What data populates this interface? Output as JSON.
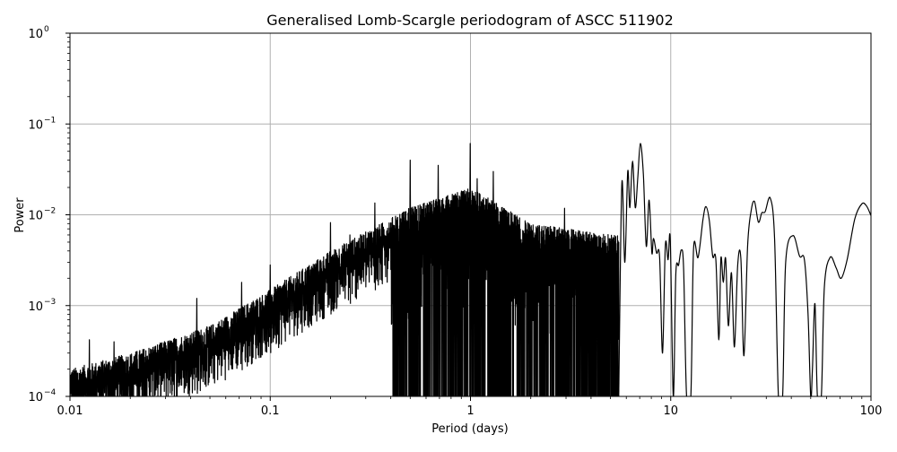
{
  "chart_data": {
    "type": "line",
    "title": "Generalised Lomb-Scargle periodogram of ASCC 511902",
    "xlabel": "Period (days)",
    "ylabel": "Power",
    "xscale": "log",
    "yscale": "log",
    "xlim": [
      0.01,
      100
    ],
    "ylim": [
      0.0001,
      1
    ],
    "grid": true,
    "legend": null,
    "x_ticks": [
      {
        "value": 0.01,
        "label": "0.01"
      },
      {
        "value": 0.1,
        "label": "0.1"
      },
      {
        "value": 1,
        "label": "1"
      },
      {
        "value": 10,
        "label": "10"
      },
      {
        "value": 100,
        "label": "100"
      }
    ],
    "y_ticks": [
      {
        "value": 1,
        "base": "10",
        "exp": "0"
      },
      {
        "value": 0.1,
        "base": "10",
        "exp": "−1"
      },
      {
        "value": 0.01,
        "base": "10",
        "exp": "−2"
      },
      {
        "value": 0.001,
        "base": "10",
        "exp": "−3"
      },
      {
        "value": 0.0001,
        "base": "10",
        "exp": "−4"
      }
    ],
    "envelope": {
      "description": "Dense forest of peaks; upper envelope rises with period",
      "points": [
        {
          "period": 0.01,
          "power": 0.0002
        },
        {
          "period": 0.02,
          "power": 0.0003
        },
        {
          "period": 0.05,
          "power": 0.0006
        },
        {
          "period": 0.1,
          "power": 0.0015
        },
        {
          "period": 0.2,
          "power": 0.004
        },
        {
          "period": 0.5,
          "power": 0.012
        },
        {
          "period": 1.0,
          "power": 0.02
        },
        {
          "period": 2.0,
          "power": 0.008
        },
        {
          "period": 5.0,
          "power": 0.006
        }
      ]
    },
    "peaks": [
      {
        "period": 0.0125,
        "power": 0.00042
      },
      {
        "period": 0.0166,
        "power": 0.0004
      },
      {
        "period": 0.043,
        "power": 0.0012
      },
      {
        "period": 0.072,
        "power": 0.0018
      },
      {
        "period": 0.1,
        "power": 0.0028
      },
      {
        "period": 0.2,
        "power": 0.0082
      },
      {
        "period": 0.25,
        "power": 0.006
      },
      {
        "period": 0.333,
        "power": 0.0135
      },
      {
        "period": 0.5,
        "power": 0.04
      },
      {
        "period": 0.69,
        "power": 0.035
      },
      {
        "period": 0.997,
        "power": 0.061
      },
      {
        "period": 1.08,
        "power": 0.025
      },
      {
        "period": 1.3,
        "power": 0.03
      },
      {
        "period": 2.95,
        "power": 0.0118
      },
      {
        "period": 5.7,
        "power": 0.022
      },
      {
        "period": 6.4,
        "power": 0.038
      },
      {
        "period": 7.05,
        "power": 0.06
      },
      {
        "period": 7.8,
        "power": 0.0145
      },
      {
        "period": 9.5,
        "power": 0.0045
      },
      {
        "period": 11.3,
        "power": 0.004
      },
      {
        "period": 15.0,
        "power": 0.0123
      },
      {
        "period": 17.6,
        "power": 0.0033
      },
      {
        "period": 20.0,
        "power": 0.0023
      },
      {
        "period": 22.5,
        "power": 0.0033
      },
      {
        "period": 26.2,
        "power": 0.014
      },
      {
        "period": 28.5,
        "power": 0.0105
      },
      {
        "period": 31.4,
        "power": 0.0153
      },
      {
        "period": 40.8,
        "power": 0.0059
      },
      {
        "period": 46.0,
        "power": 0.0033
      },
      {
        "period": 52.0,
        "power": 0.00105
      },
      {
        "period": 63.0,
        "power": 0.0034
      },
      {
        "period": 90.0,
        "power": 0.0132
      }
    ],
    "smooth_tail": [
      [
        5.5,
        0.0001
      ],
      [
        5.7,
        0.022
      ],
      [
        5.9,
        0.003
      ],
      [
        6.1,
        0.03
      ],
      [
        6.25,
        0.012
      ],
      [
        6.45,
        0.039
      ],
      [
        6.65,
        0.012
      ],
      [
        6.85,
        0.026
      ],
      [
        7.05,
        0.061
      ],
      [
        7.3,
        0.028
      ],
      [
        7.55,
        0.0045
      ],
      [
        7.8,
        0.0145
      ],
      [
        8.05,
        0.0038
      ],
      [
        8.2,
        0.0055
      ],
      [
        8.5,
        0.0038
      ],
      [
        8.8,
        0.0034
      ],
      [
        9.1,
        0.0003
      ],
      [
        9.4,
        0.0046
      ],
      [
        9.7,
        0.0032
      ],
      [
        9.95,
        0.0052
      ],
      [
        10.3,
        0.0001
      ],
      [
        10.6,
        0.0022
      ],
      [
        10.95,
        0.0028
      ],
      [
        11.3,
        0.0041
      ],
      [
        11.6,
        0.0025
      ],
      [
        12.0,
        0.0001
      ],
      [
        12.6,
        0.0001
      ],
      [
        13.0,
        0.0042
      ],
      [
        13.7,
        0.0034
      ],
      [
        14.5,
        0.009
      ],
      [
        15.0,
        0.0123
      ],
      [
        15.6,
        0.0085
      ],
      [
        16.2,
        0.0035
      ],
      [
        16.8,
        0.0032
      ],
      [
        17.4,
        0.00042
      ],
      [
        17.8,
        0.0033
      ],
      [
        18.3,
        0.0018
      ],
      [
        18.8,
        0.0033
      ],
      [
        19.4,
        0.0006
      ],
      [
        20.1,
        0.0023
      ],
      [
        20.8,
        0.00035
      ],
      [
        21.6,
        0.0028
      ],
      [
        22.4,
        0.0033
      ],
      [
        23.2,
        0.00028
      ],
      [
        24.2,
        0.0045
      ],
      [
        25.2,
        0.011
      ],
      [
        26.2,
        0.014
      ],
      [
        27.4,
        0.0083
      ],
      [
        28.5,
        0.0105
      ],
      [
        29.6,
        0.0108
      ],
      [
        31.4,
        0.0153
      ],
      [
        33.0,
        0.0055
      ],
      [
        34.5,
        0.0001
      ],
      [
        36.2,
        0.0001
      ],
      [
        37.5,
        0.003
      ],
      [
        40.8,
        0.0059
      ],
      [
        44.0,
        0.0035
      ],
      [
        46.5,
        0.0032
      ],
      [
        48.5,
        0.0008
      ],
      [
        50.0,
        0.0001
      ],
      [
        51.0,
        0.0002
      ],
      [
        52.5,
        0.00105
      ],
      [
        54.0,
        0.0001
      ],
      [
        56.5,
        0.0001
      ],
      [
        58.5,
        0.0016
      ],
      [
        62.5,
        0.0034
      ],
      [
        67.0,
        0.0026
      ],
      [
        71.0,
        0.002
      ],
      [
        76.0,
        0.0032
      ],
      [
        83.0,
        0.009
      ],
      [
        90.0,
        0.0132
      ],
      [
        95.0,
        0.0125
      ],
      [
        100.0,
        0.0098
      ]
    ],
    "line_color": "#000000",
    "grid_color": "#b0b0b0"
  }
}
